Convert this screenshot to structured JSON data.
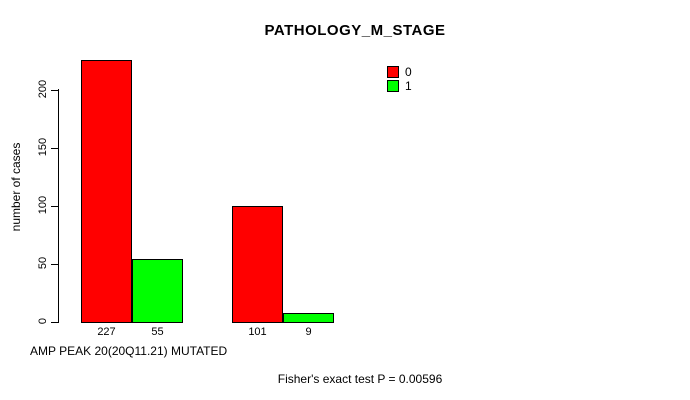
{
  "chart_data": {
    "type": "bar",
    "title": "PATHOLOGY_M_STAGE",
    "ylabel": "number of cases",
    "xlabel": "AMP PEAK 20(20Q11.21) MUTATED",
    "footer": "Fisher's exact test P = 0.00596",
    "yticks": [
      0,
      50,
      100,
      150,
      200
    ],
    "ylim": [
      0,
      230
    ],
    "grid": false,
    "legend_position": "top-right",
    "background_color": "#ffffff",
    "axis_color": "#000000",
    "legend": [
      {
        "label": "0",
        "color": "#ff0000"
      },
      {
        "label": "1",
        "color": "#00ff00"
      }
    ],
    "series": [
      {
        "name": "0",
        "color": "#ff0000",
        "values": [
          227,
          101
        ]
      },
      {
        "name": "1",
        "color": "#00ff00",
        "values": [
          55,
          9
        ]
      }
    ],
    "bar_value_labels": [
      "227",
      "55",
      "101",
      "9"
    ]
  }
}
